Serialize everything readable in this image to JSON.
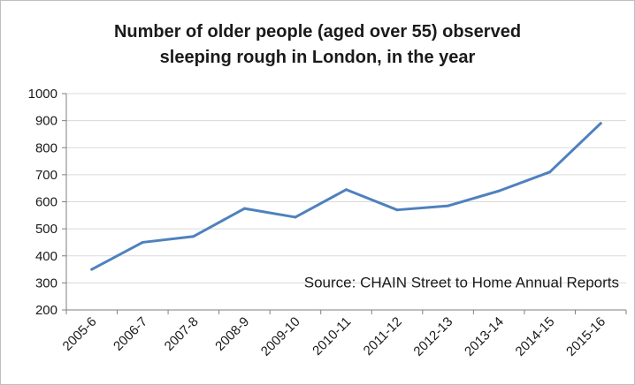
{
  "chart_data": {
    "type": "line",
    "title": "Number of older people (aged over 55) observed",
    "subtitle": "sleeping rough in London, in the year",
    "categories": [
      "2005-6",
      "2006-7",
      "2007-8",
      "2008-9",
      "2009-10",
      "2010-11",
      "2011-12",
      "2012-13",
      "2013-14",
      "2014-15",
      "2015-16"
    ],
    "series": [
      {
        "values": [
          350,
          450,
          472,
          575,
          543,
          645,
          570,
          585,
          640,
          710,
          890
        ]
      }
    ],
    "ylim": [
      200,
      1000
    ],
    "yticks": [
      200,
      300,
      400,
      500,
      600,
      700,
      800,
      900,
      1000
    ],
    "annotation": "Source:  CHAIN Street to Home Annual Reports",
    "grid": true,
    "legend": "none",
    "line_color": "#4f81bd",
    "grid_color": "#d9d9d9"
  }
}
